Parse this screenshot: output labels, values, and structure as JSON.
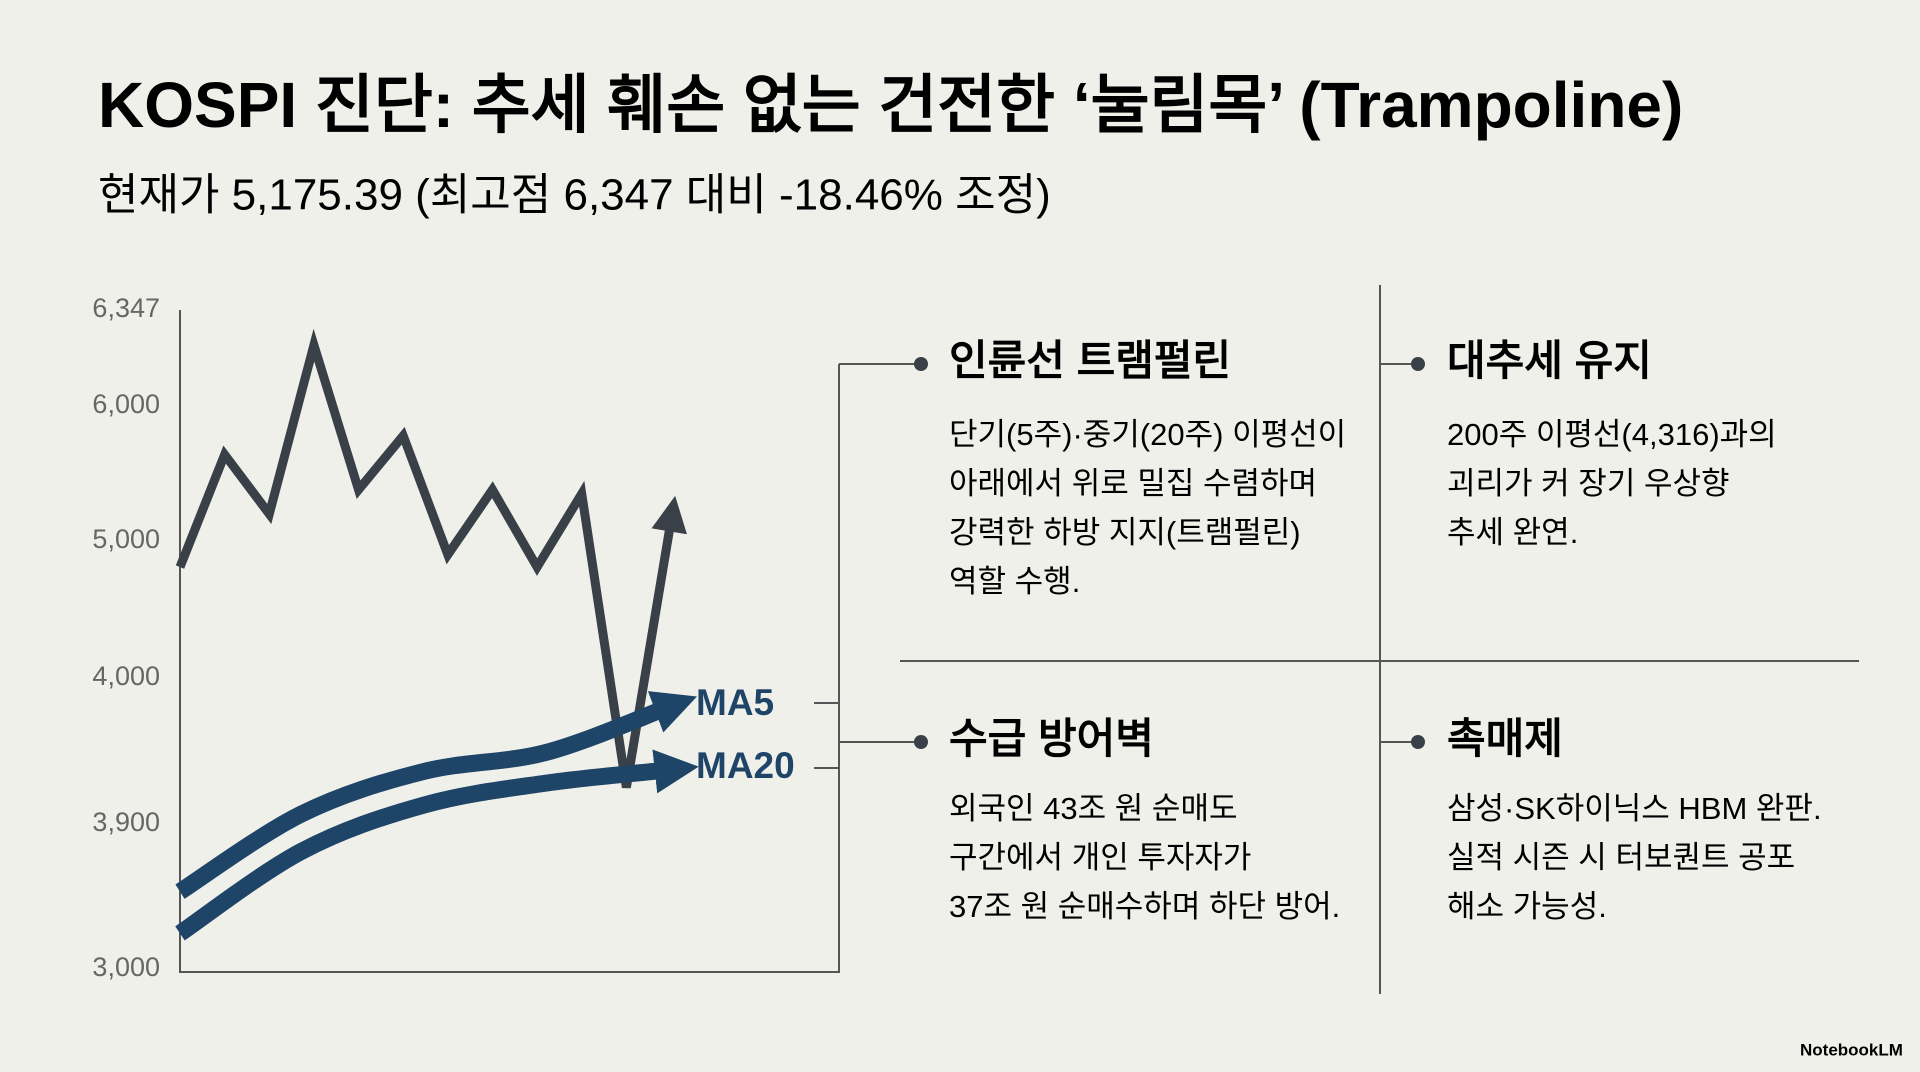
{
  "title": "KOSPI 진단: 추세 훼손 없는 건전한 ‘눌림목’ (Trampoline)",
  "subtitle": "현재가 5,175.39 (최고점 6,347 대비 -18.46% 조정)",
  "chart_data": {
    "type": "line",
    "ylim": [
      3000,
      6347
    ],
    "yticks": [
      {
        "value": 6347,
        "label": "6,347"
      },
      {
        "value": 6000,
        "label": "6,000"
      },
      {
        "value": 5000,
        "label": "5,000"
      },
      {
        "value": 4000,
        "label": "4,000"
      },
      {
        "value": 3900,
        "label": "3,900"
      },
      {
        "value": 3000,
        "label": "3,000"
      }
    ],
    "series": [
      {
        "color": "#3a4048",
        "values": [
          4810,
          5640,
          5200,
          6220,
          5380,
          5780,
          4900,
          5380,
          4810,
          5350,
          3925,
          5150
        ]
      },
      {
        "name": "MA5",
        "color": "#1e4468",
        "values": [
          3480,
          3907,
          3936,
          3949,
          3980
        ]
      },
      {
        "name": "MA20",
        "color": "#1e4468",
        "values": [
          3221,
          3732,
          3913,
          3928,
          3937
        ]
      }
    ]
  },
  "panels": [
    {
      "title": "인륜선 트램펄린",
      "lines": [
        "단기(5주)·중기(20주) 이평선이",
        "아래에서 위로 밀집 수렴하며",
        "강력한 하방 지지(트램펄린)",
        "역할 수행."
      ]
    },
    {
      "title": "대추세 유지",
      "lines": [
        "200주 이평선(4,316)과의",
        "괴리가 커 장기 우상향",
        "추세 완연."
      ]
    },
    {
      "title": "수급 방어벽",
      "lines": [
        "외국인 43조 원 순매도",
        "구간에서 개인 투자자가",
        "37조 원 순매수하며 하단 방어."
      ]
    },
    {
      "title": "촉매제",
      "lines": [
        "삼성·SK하이닉스 HBM 완판.",
        "실적 시즌 시 터보퀀트 공포",
        "해소 가능성."
      ]
    }
  ],
  "watermark": "NotebookLM"
}
